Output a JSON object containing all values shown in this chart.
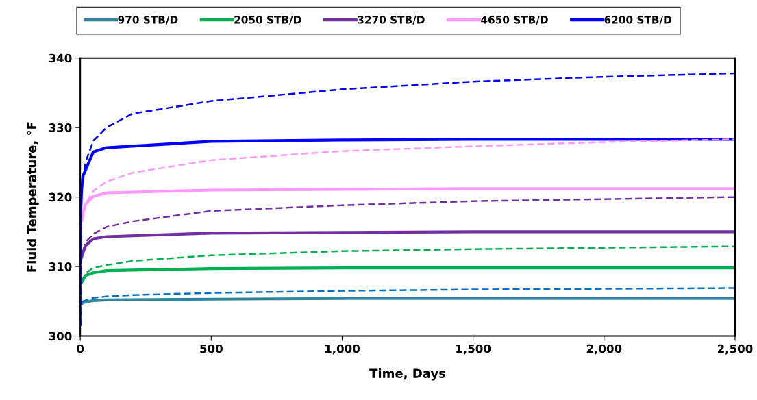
{
  "chart_data": {
    "type": "line",
    "xlabel": "Time, Days",
    "ylabel": "Fluid Temperature, °F",
    "xlim": [
      0,
      2500
    ],
    "xticks": [
      0,
      500,
      {
        "value": 1000,
        "label": "1,000"
      },
      {
        "value": 1500,
        "label": "1,500"
      },
      {
        "value": 2000,
        "label": "2,000"
      },
      {
        "value": 2500,
        "label": "2,500"
      }
    ],
    "ylim": [
      300,
      340
    ],
    "yticks": [
      300,
      310,
      320,
      330,
      340
    ],
    "grid": false,
    "legend": "top",
    "marker": "none",
    "series": [
      {
        "name": "970 STB/D",
        "color": "#31859c",
        "line_style": "solid",
        "x": [
          0,
          2,
          10,
          50,
          100,
          500,
          1000,
          1500,
          2000,
          2500
        ],
        "values": [
          302,
          304.5,
          304.8,
          305.1,
          305.2,
          305.3,
          305.4,
          305.4,
          305.4,
          305.4
        ]
      },
      {
        "name": "2050 STB/D",
        "color": "#00b050",
        "line_style": "solid",
        "x": [
          0,
          2,
          20,
          50,
          100,
          500,
          1000,
          1500,
          2000,
          2500
        ],
        "values": [
          302,
          307.5,
          308.7,
          309.1,
          309.4,
          309.7,
          309.8,
          309.8,
          309.8,
          309.8
        ]
      },
      {
        "name": "3270 STB/D",
        "color": "#7030a0",
        "line_style": "solid",
        "x": [
          0,
          2,
          20,
          50,
          100,
          500,
          1000,
          1500,
          2000,
          2500
        ],
        "values": [
          302,
          311,
          313,
          314,
          314.3,
          314.8,
          314.9,
          315,
          315,
          315
        ]
      },
      {
        "name": "4650 STB/D",
        "color": "#ff99ff",
        "line_style": "solid",
        "x": [
          5,
          20,
          50,
          100,
          500,
          1000,
          1500,
          2000,
          2500
        ],
        "values": [
          317,
          319,
          320.1,
          320.6,
          321,
          321.1,
          321.2,
          321.2,
          321.2
        ]
      },
      {
        "name": "6200 STB/D",
        "color": "#0000ff",
        "line_style": "solid",
        "x": [
          0,
          2,
          5,
          10,
          50,
          100,
          500,
          1000,
          1500,
          2000,
          2500
        ],
        "values": [
          301.7,
          318,
          321,
          323,
          326.5,
          327.1,
          328,
          328.2,
          328.3,
          328.3,
          328.3
        ]
      },
      {
        "color": "#0070c0",
        "line_style": "dashed",
        "x": [
          0,
          2,
          10,
          50,
          100,
          200,
          500,
          1000,
          1500,
          2000,
          2500
        ],
        "values": [
          302,
          304.6,
          305,
          305.5,
          305.7,
          305.9,
          306.2,
          306.5,
          306.7,
          306.8,
          306.9
        ]
      },
      {
        "color": "#00b050",
        "line_style": "dashed",
        "x": [
          0,
          2,
          20,
          50,
          100,
          200,
          500,
          1000,
          1500,
          2000,
          2500
        ],
        "values": [
          302,
          307.5,
          309,
          309.8,
          310.2,
          310.8,
          311.6,
          312.2,
          312.5,
          312.7,
          312.9
        ]
      },
      {
        "color": "#7030a0",
        "line_style": "dashed",
        "x": [
          0,
          2,
          20,
          50,
          100,
          200,
          500,
          1000,
          1500,
          2000,
          2500
        ],
        "values": [
          302,
          311,
          313.5,
          314.7,
          315.7,
          316.5,
          318,
          318.8,
          319.4,
          319.7,
          320
        ]
      },
      {
        "color": "#ff99ff",
        "line_style": "dashed",
        "x": [
          1,
          20,
          50,
          100,
          200,
          500,
          1000,
          1500,
          2000,
          2500
        ],
        "values": [
          315,
          319,
          320.9,
          322.2,
          323.5,
          325.3,
          326.6,
          327.3,
          327.9,
          328.3
        ]
      },
      {
        "color": "#0000ff",
        "line_style": "dashed",
        "x": [
          0,
          2,
          5,
          20,
          50,
          100,
          200,
          500,
          1000,
          1500,
          2000,
          2500
        ],
        "values": [
          301.7,
          318,
          321,
          325,
          328.1,
          330,
          332,
          333.8,
          335.5,
          336.6,
          337.3,
          337.8
        ]
      }
    ]
  }
}
